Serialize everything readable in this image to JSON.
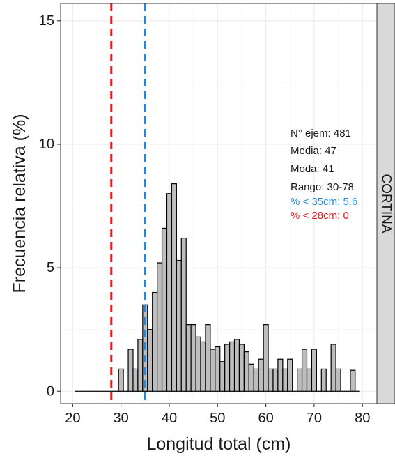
{
  "chart_data": {
    "type": "bar",
    "xlabel": "Longitud total (cm)",
    "ylabel": "Frecuencia relativa (%)",
    "xlim": [
      17.5,
      83
    ],
    "ylim": [
      -0.5,
      15.7
    ],
    "x_ticks": [
      20,
      30,
      40,
      50,
      60,
      70,
      80
    ],
    "y_ticks": [
      0,
      5,
      10,
      15
    ],
    "grid": true,
    "facet_label": "CORTINA",
    "bin_width": 1,
    "x": [
      21,
      22,
      23,
      24,
      25,
      26,
      27,
      28,
      29,
      30,
      31,
      32,
      33,
      34,
      35,
      36,
      37,
      38,
      39,
      40,
      41,
      42,
      43,
      44,
      45,
      46,
      47,
      48,
      49,
      50,
      51,
      52,
      53,
      54,
      55,
      56,
      57,
      58,
      59,
      60,
      61,
      62,
      63,
      64,
      65,
      66,
      67,
      68,
      69,
      70,
      71,
      72,
      73,
      74,
      75,
      76,
      77,
      78,
      79
    ],
    "values": [
      0,
      0,
      0,
      0,
      0,
      0,
      0,
      0,
      0,
      0.9,
      0,
      1.7,
      0.9,
      2.1,
      3.5,
      2.5,
      4.0,
      5.2,
      6.6,
      8.0,
      8.4,
      5.3,
      6.2,
      2.7,
      2.7,
      2.2,
      2.0,
      2.7,
      1.7,
      1.8,
      1.2,
      1.9,
      2.0,
      2.1,
      1.9,
      1.6,
      1.1,
      0.9,
      1.3,
      2.7,
      0.9,
      0.9,
      1.3,
      0.9,
      1.3,
      0,
      0.9,
      1.7,
      0.9,
      1.7,
      0,
      0.9,
      0,
      1.9,
      0.9,
      0,
      0,
      0.85,
      0
    ],
    "reference_lines": [
      {
        "x": 28,
        "color": "#e41a1c",
        "style": "dashed"
      },
      {
        "x": 35,
        "color": "#1e88e5",
        "style": "dashed"
      }
    ],
    "annotations": [
      {
        "text": "N° ejem:  481",
        "color": "#1a1a1a"
      },
      {
        "text": "Media:  47",
        "color": "#1a1a1a"
      },
      {
        "text": "Moda:  41",
        "color": "#1a1a1a"
      },
      {
        "text": "Rango:  30-78",
        "color": "#1a1a1a"
      },
      {
        "text": "% < 35cm:  5.6",
        "color": "#1e88e5"
      },
      {
        "text": "% < 28cm:  0",
        "color": "#e41a1c"
      }
    ],
    "bar_fill": "#bdbdbd",
    "bar_stroke": "#000000"
  }
}
